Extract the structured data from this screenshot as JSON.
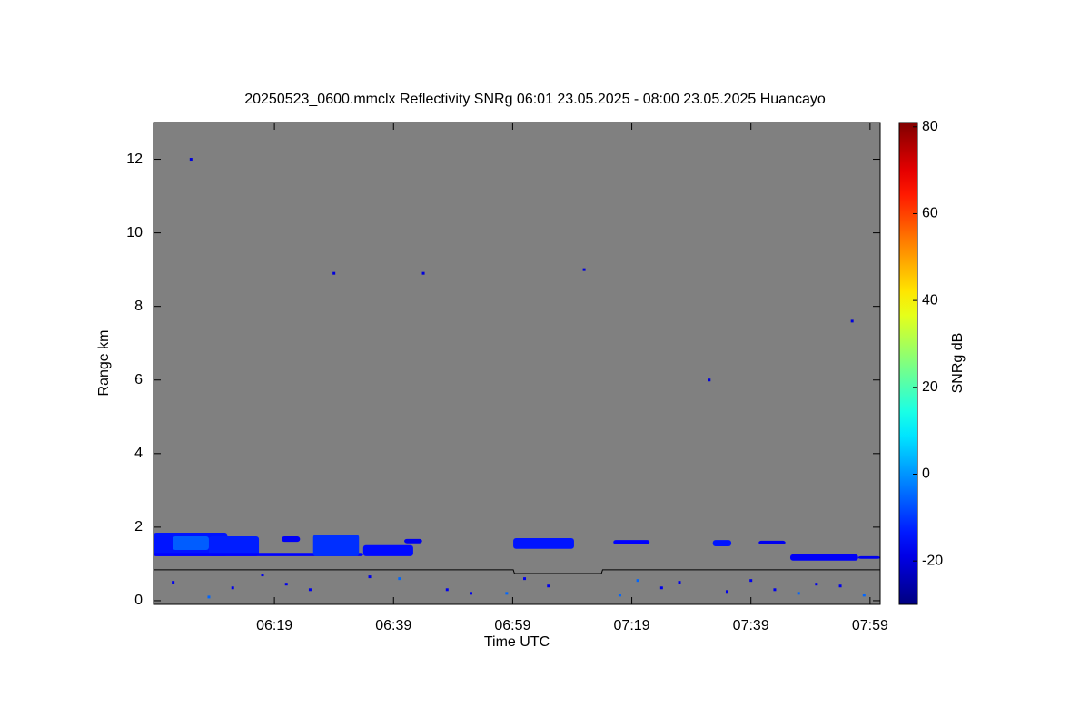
{
  "chart_data": {
    "type": "heatmap",
    "title": "20250523_0600.mmclx Reflectivity SNRg   06:01 23.05.2025 - 08:00 23.05.2025 Huancayo",
    "x_label": "Time UTC",
    "y_label": "Range km",
    "colorbar_label": "SNRg dB",
    "background_color": "#808080",
    "colormap": "jet",
    "xlim": [
      358.7,
      480.7
    ],
    "xticks": [
      {
        "value": 379,
        "label": "06:19"
      },
      {
        "value": 399,
        "label": "06:39"
      },
      {
        "value": 419,
        "label": "06:59"
      },
      {
        "value": 439,
        "label": "07:19"
      },
      {
        "value": 459,
        "label": "07:39"
      },
      {
        "value": 479,
        "label": "07:59"
      }
    ],
    "ylim": [
      -0.1,
      13
    ],
    "yticks": [
      0,
      2,
      4,
      6,
      8,
      10,
      12
    ],
    "clim": [
      -30,
      81
    ],
    "cticks": [
      -20,
      0,
      20,
      40,
      60,
      80
    ],
    "patches": {
      "x0": [
        358.7,
        361.9,
        368.0,
        358.7,
        380.2,
        385.5,
        393.9,
        400.8,
        419.1,
        435.9,
        452.6,
        460.3,
        465.6,
        477.0
      ],
      "x1": [
        371.1,
        368.0,
        376.4,
        393.9,
        383.3,
        393.2,
        402.3,
        403.8,
        429.3,
        442.0,
        455.7,
        464.8,
        477.0,
        480.7
      ],
      "y0": [
        1.21,
        1.38,
        1.21,
        1.21,
        1.6,
        1.21,
        1.21,
        1.56,
        1.41,
        1.53,
        1.48,
        1.53,
        1.09,
        1.14
      ],
      "y1": [
        1.85,
        1.75,
        1.75,
        1.3,
        1.75,
        1.8,
        1.51,
        1.68,
        1.7,
        1.65,
        1.65,
        1.63,
        1.26,
        1.21
      ],
      "values": [
        -14,
        -6,
        -13,
        -16,
        -17,
        -11,
        -15,
        -18,
        -14,
        -16,
        -14,
        -18,
        -17,
        -18
      ]
    },
    "boundary": {
      "x": [
        358.7,
        419.1,
        419.3,
        433.9,
        434.1,
        480.7
      ],
      "y": [
        0.84,
        0.84,
        0.74,
        0.74,
        0.84,
        0.84
      ]
    },
    "speckles": {
      "x": [
        362,
        385,
        400,
        412,
        425,
        440,
        455,
        470,
        478,
        372,
        395,
        418,
        447,
        463,
        365,
        389,
        404,
        431,
        452,
        476,
        368,
        381,
        408,
        421,
        437,
        444,
        459,
        467,
        474,
        377
      ],
      "y": [
        0.5,
        0.3,
        0.6,
        0.2,
        0.4,
        0.55,
        0.25,
        0.45,
        0.15,
        0.35,
        0.65,
        0.2,
        0.5,
        0.3,
        12.0,
        8.9,
        8.9,
        9.0,
        6.0,
        7.6,
        0.1,
        0.45,
        0.3,
        0.6,
        0.15,
        0.35,
        0.55,
        0.2,
        0.4,
        0.7
      ],
      "values": [
        -18,
        -18,
        -5,
        -18,
        -18,
        -5,
        -18,
        -18,
        -5,
        -18,
        -18,
        -5,
        -18,
        -18,
        -20,
        -20,
        -20,
        -20,
        -20,
        -20,
        -5,
        -18,
        -18,
        -18,
        -5,
        -18,
        -18,
        -5,
        -18,
        -18
      ]
    }
  }
}
